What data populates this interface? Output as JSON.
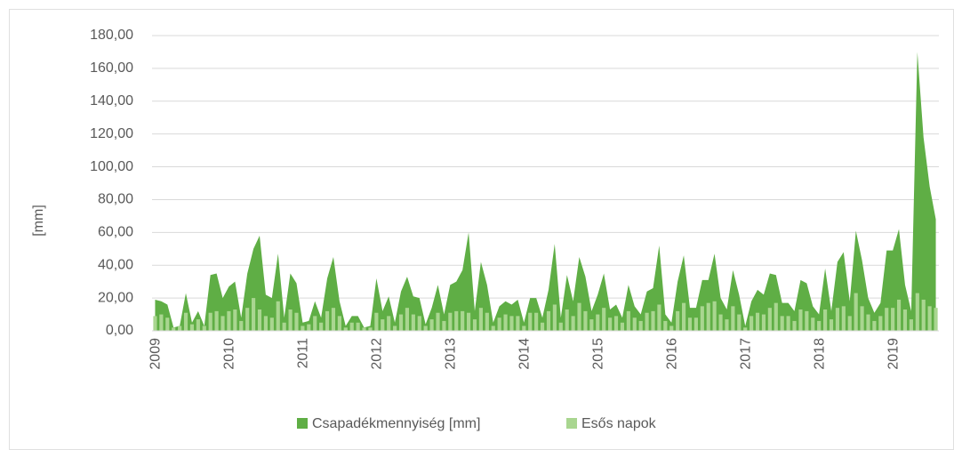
{
  "chart_data": {
    "type": "area_bar",
    "y_label": "[mm]",
    "categories": [
      "2009",
      null,
      null,
      null,
      null,
      null,
      null,
      null,
      null,
      null,
      null,
      null,
      "2010",
      null,
      null,
      null,
      null,
      null,
      null,
      null,
      null,
      null,
      null,
      null,
      "2011",
      null,
      null,
      null,
      null,
      null,
      null,
      null,
      null,
      null,
      null,
      null,
      "2012",
      null,
      null,
      null,
      null,
      null,
      null,
      null,
      null,
      null,
      null,
      null,
      "2013",
      null,
      null,
      null,
      null,
      null,
      null,
      null,
      null,
      null,
      null,
      null,
      "2014",
      null,
      null,
      null,
      null,
      null,
      null,
      null,
      null,
      null,
      null,
      null,
      "2015",
      null,
      null,
      null,
      null,
      null,
      null,
      null,
      null,
      null,
      null,
      null,
      "2016",
      null,
      null,
      null,
      null,
      null,
      null,
      null,
      null,
      null,
      null,
      null,
      "2017",
      null,
      null,
      null,
      null,
      null,
      null,
      null,
      null,
      null,
      null,
      null,
      "2018",
      null,
      null,
      null,
      null,
      null,
      null,
      null,
      null,
      null,
      null,
      null,
      "2019",
      null,
      null,
      null,
      null,
      null,
      null,
      null
    ],
    "series": [
      {
        "name": "Csapadékmennyiség [mm]",
        "color": "#5fae45",
        "kind": "area",
        "values": [
          19,
          18,
          16,
          2,
          3,
          23,
          5,
          12,
          3,
          34,
          35,
          20,
          27,
          30,
          8,
          35,
          50,
          58,
          22,
          20,
          47,
          8,
          35,
          29,
          5,
          6,
          18,
          8,
          32,
          45,
          18,
          3,
          9,
          9,
          2,
          3,
          32,
          12,
          21,
          5,
          24,
          33,
          21,
          20,
          4,
          14,
          28,
          10,
          28,
          30,
          37,
          60,
          12,
          42,
          28,
          5,
          15,
          18,
          16,
          19,
          5,
          20,
          20,
          8,
          25,
          53,
          8,
          34,
          18,
          45,
          33,
          12,
          22,
          35,
          13,
          16,
          8,
          28,
          15,
          10,
          24,
          26,
          52,
          10,
          5,
          30,
          46,
          14,
          14,
          31,
          31,
          47,
          20,
          13,
          37,
          22,
          3,
          18,
          25,
          22,
          35,
          34,
          17,
          17,
          12,
          31,
          29,
          15,
          10,
          38,
          12,
          42,
          48,
          18,
          61,
          43,
          20,
          11,
          17,
          49,
          49,
          62,
          28,
          12,
          170,
          118,
          88,
          68
        ]
      },
      {
        "name": "Esős napok",
        "color": "#a9d690",
        "kind": "bar",
        "values": [
          9,
          10,
          8,
          2,
          3,
          11,
          4,
          7,
          3,
          11,
          12,
          9,
          12,
          13,
          6,
          14,
          20,
          13,
          9,
          8,
          18,
          5,
          13,
          11,
          3,
          4,
          9,
          5,
          12,
          14,
          9,
          2,
          5,
          5,
          2,
          2,
          11,
          7,
          9,
          3,
          10,
          14,
          10,
          9,
          3,
          7,
          11,
          6,
          11,
          12,
          12,
          11,
          7,
          14,
          11,
          3,
          8,
          10,
          9,
          9,
          3,
          11,
          11,
          5,
          12,
          16,
          5,
          13,
          9,
          17,
          12,
          7,
          10,
          14,
          8,
          9,
          5,
          12,
          8,
          6,
          11,
          12,
          16,
          6,
          3,
          12,
          17,
          8,
          8,
          15,
          17,
          18,
          10,
          7,
          15,
          10,
          2,
          9,
          11,
          10,
          14,
          17,
          9,
          9,
          6,
          13,
          12,
          8,
          6,
          13,
          7,
          14,
          15,
          9,
          23,
          15,
          10,
          6,
          9,
          14,
          14,
          19,
          13,
          7,
          23,
          19,
          15,
          14
        ]
      }
    ],
    "ylim": [
      0,
      180
    ],
    "yticks": [
      {
        "value": 0,
        "label": "0,00"
      },
      {
        "value": 20,
        "label": "20,00"
      },
      {
        "value": 40,
        "label": "40,00"
      },
      {
        "value": 60,
        "label": "60,00"
      },
      {
        "value": 80,
        "label": "80,00"
      },
      {
        "value": 100,
        "label": "100,00"
      },
      {
        "value": 120,
        "label": "120,00"
      },
      {
        "value": 140,
        "label": "140,00"
      },
      {
        "value": 160,
        "label": "160,00"
      },
      {
        "value": 180,
        "label": "180,00"
      }
    ],
    "grid": true,
    "legend": "bottom"
  }
}
